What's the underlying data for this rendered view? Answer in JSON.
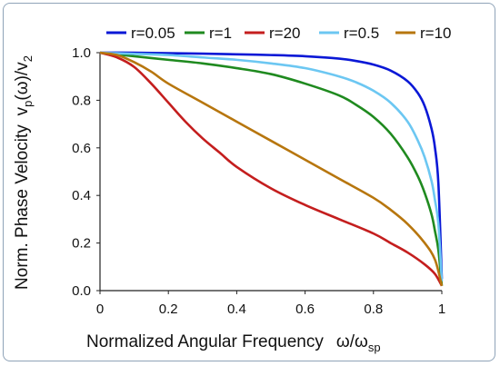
{
  "chart_data": {
    "type": "line",
    "xlabel": "Normalized Angular Frequency",
    "xlabel_symbol": "ω/ω",
    "xlabel_subscript": "sp",
    "ylabel": "Norm. Phase Velocity",
    "ylabel_symbol": "v",
    "ylabel_sub1": "p",
    "ylabel_mid": "(ω)/v",
    "ylabel_sub2": "2",
    "xlim": [
      0,
      1
    ],
    "ylim": [
      0,
      1
    ],
    "xticks": [
      "0",
      "0.2",
      "0.4",
      "0.6",
      "0.8",
      "1"
    ],
    "yticks": [
      "0.0",
      "0.2",
      "0.4",
      "0.6",
      "0.8",
      "1.0"
    ],
    "grid": false,
    "legend_position": "top",
    "series": [
      {
        "name": "r=0.05",
        "color": "#0a18d6",
        "x": [
          0,
          0.1,
          0.2,
          0.3,
          0.4,
          0.5,
          0.6,
          0.7,
          0.75,
          0.8,
          0.85,
          0.9,
          0.93,
          0.95,
          0.97,
          0.98,
          0.99,
          1.0
        ],
        "y": [
          1.0,
          1.0,
          0.998,
          0.996,
          0.993,
          0.99,
          0.985,
          0.975,
          0.965,
          0.95,
          0.925,
          0.88,
          0.83,
          0.775,
          0.68,
          0.6,
          0.45,
          0.05
        ]
      },
      {
        "name": "r=1",
        "color": "#1f8a1f",
        "x": [
          0,
          0.1,
          0.2,
          0.3,
          0.4,
          0.5,
          0.6,
          0.7,
          0.75,
          0.8,
          0.85,
          0.9,
          0.93,
          0.95,
          0.97,
          0.98,
          0.99,
          1.0
        ],
        "y": [
          1.0,
          0.985,
          0.97,
          0.955,
          0.935,
          0.91,
          0.87,
          0.82,
          0.78,
          0.73,
          0.66,
          0.56,
          0.48,
          0.41,
          0.32,
          0.25,
          0.17,
          0.02
        ]
      },
      {
        "name": "r=20",
        "color": "#c41e1e",
        "x": [
          0,
          0.05,
          0.1,
          0.15,
          0.2,
          0.25,
          0.3,
          0.35,
          0.4,
          0.5,
          0.6,
          0.7,
          0.8,
          0.85,
          0.9,
          0.95,
          0.98,
          1.0
        ],
        "y": [
          1.0,
          0.98,
          0.94,
          0.87,
          0.79,
          0.71,
          0.64,
          0.58,
          0.52,
          0.43,
          0.36,
          0.3,
          0.24,
          0.2,
          0.16,
          0.11,
          0.07,
          0.02
        ]
      },
      {
        "name": "r=0.5",
        "color": "#6cc7f2",
        "x": [
          0,
          0.1,
          0.2,
          0.3,
          0.4,
          0.5,
          0.6,
          0.7,
          0.75,
          0.8,
          0.85,
          0.9,
          0.93,
          0.95,
          0.97,
          0.98,
          0.99,
          1.0
        ],
        "y": [
          1.0,
          0.995,
          0.99,
          0.98,
          0.97,
          0.955,
          0.935,
          0.9,
          0.875,
          0.84,
          0.79,
          0.71,
          0.63,
          0.56,
          0.46,
          0.38,
          0.28,
          0.04
        ]
      },
      {
        "name": "r=10",
        "color": "#b7760e",
        "x": [
          0,
          0.05,
          0.1,
          0.15,
          0.2,
          0.3,
          0.4,
          0.5,
          0.6,
          0.7,
          0.8,
          0.85,
          0.9,
          0.95,
          0.98,
          1.0
        ],
        "y": [
          1.0,
          0.99,
          0.96,
          0.92,
          0.87,
          0.79,
          0.71,
          0.63,
          0.55,
          0.47,
          0.39,
          0.34,
          0.28,
          0.2,
          0.13,
          0.02
        ]
      }
    ]
  }
}
